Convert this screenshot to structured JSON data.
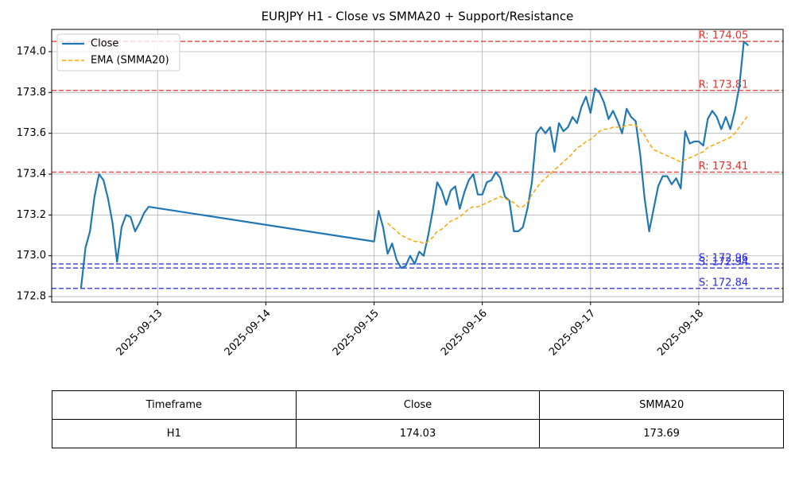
{
  "chart_data": {
    "type": "line",
    "title": "EURJPY H1 - Close vs SMMA20 + Support/Resistance",
    "x": [
      "2025-09-12T07:00",
      "2025-09-12T08:00",
      "2025-09-12T09:00",
      "2025-09-12T10:00",
      "2025-09-12T11:00",
      "2025-09-12T12:00",
      "2025-09-12T13:00",
      "2025-09-12T14:00",
      "2025-09-12T15:00",
      "2025-09-12T16:00",
      "2025-09-12T17:00",
      "2025-09-12T18:00",
      "2025-09-12T19:00",
      "2025-09-12T20:00",
      "2025-09-12T21:00",
      "2025-09-12T22:00",
      "2025-09-15T00:00",
      "2025-09-15T01:00",
      "2025-09-15T02:00",
      "2025-09-15T03:00",
      "2025-09-15T04:00",
      "2025-09-15T05:00",
      "2025-09-15T06:00",
      "2025-09-15T07:00",
      "2025-09-15T08:00",
      "2025-09-15T09:00",
      "2025-09-15T10:00",
      "2025-09-15T11:00",
      "2025-09-15T12:00",
      "2025-09-15T13:00",
      "2025-09-15T14:00",
      "2025-09-15T15:00",
      "2025-09-15T16:00",
      "2025-09-15T17:00",
      "2025-09-15T18:00",
      "2025-09-15T19:00",
      "2025-09-15T20:00",
      "2025-09-15T21:00",
      "2025-09-15T22:00",
      "2025-09-15T23:00",
      "2025-09-16T00:00",
      "2025-09-16T01:00",
      "2025-09-16T02:00",
      "2025-09-16T03:00",
      "2025-09-16T04:00",
      "2025-09-16T05:00",
      "2025-09-16T06:00",
      "2025-09-16T07:00",
      "2025-09-16T08:00",
      "2025-09-16T09:00",
      "2025-09-16T10:00",
      "2025-09-16T11:00",
      "2025-09-16T12:00",
      "2025-09-16T13:00",
      "2025-09-16T14:00",
      "2025-09-16T15:00",
      "2025-09-16T16:00",
      "2025-09-16T17:00",
      "2025-09-16T18:00",
      "2025-09-16T19:00",
      "2025-09-16T20:00",
      "2025-09-16T21:00",
      "2025-09-16T22:00",
      "2025-09-16T23:00",
      "2025-09-17T00:00",
      "2025-09-17T01:00",
      "2025-09-17T02:00",
      "2025-09-17T03:00",
      "2025-09-17T04:00",
      "2025-09-17T05:00",
      "2025-09-17T06:00",
      "2025-09-17T07:00",
      "2025-09-17T08:00",
      "2025-09-17T09:00",
      "2025-09-17T10:00",
      "2025-09-17T11:00",
      "2025-09-17T12:00",
      "2025-09-17T13:00",
      "2025-09-17T14:00",
      "2025-09-17T15:00",
      "2025-09-17T16:00",
      "2025-09-17T17:00",
      "2025-09-17T18:00",
      "2025-09-17T19:00",
      "2025-09-17T20:00",
      "2025-09-17T21:00",
      "2025-09-17T22:00",
      "2025-09-17T23:00",
      "2025-09-18T00:00",
      "2025-09-18T01:00",
      "2025-09-18T02:00",
      "2025-09-18T03:00",
      "2025-09-18T04:00",
      "2025-09-18T05:00",
      "2025-09-18T06:00",
      "2025-09-18T07:00",
      "2025-09-18T08:00",
      "2025-09-18T09:00",
      "2025-09-18T10:00",
      "2025-09-18T11:00"
    ],
    "series": [
      {
        "name": "Close",
        "color": "#1f77b4",
        "dash": false,
        "values": [
          172.84,
          173.04,
          173.12,
          173.29,
          173.4,
          173.37,
          173.28,
          173.16,
          172.97,
          173.14,
          173.2,
          173.19,
          173.12,
          173.16,
          173.21,
          173.24,
          173.07,
          173.22,
          173.14,
          173.01,
          173.06,
          172.98,
          172.94,
          172.95,
          173.0,
          172.96,
          173.02,
          173.0,
          173.1,
          173.22,
          173.36,
          173.32,
          173.25,
          173.32,
          173.34,
          173.23,
          173.31,
          173.37,
          173.4,
          173.3,
          173.3,
          173.36,
          173.37,
          173.41,
          173.38,
          173.29,
          173.27,
          173.12,
          173.12,
          173.14,
          173.23,
          173.36,
          173.6,
          173.63,
          173.6,
          173.63,
          173.51,
          173.65,
          173.61,
          173.63,
          173.68,
          173.65,
          173.73,
          173.78,
          173.7,
          173.82,
          173.8,
          173.75,
          173.67,
          173.71,
          173.66,
          173.6,
          173.72,
          173.68,
          173.66,
          173.5,
          173.28,
          173.12,
          173.23,
          173.34,
          173.39,
          173.39,
          173.35,
          173.38,
          173.33,
          173.61,
          173.55,
          173.56,
          173.56,
          173.54,
          173.67,
          173.71,
          173.68,
          173.62,
          173.68,
          173.62,
          173.71,
          173.83,
          174.05,
          174.03
        ]
      },
      {
        "name": "EMA (SMMA20)",
        "color": "#ffa500",
        "dash": true,
        "values": [
          null,
          null,
          null,
          null,
          null,
          null,
          null,
          null,
          null,
          null,
          null,
          null,
          null,
          null,
          null,
          null,
          null,
          null,
          null,
          173.16,
          173.14,
          173.12,
          173.1,
          173.09,
          173.08,
          173.07,
          173.07,
          173.06,
          173.07,
          173.09,
          173.12,
          173.13,
          173.15,
          173.17,
          173.18,
          173.19,
          173.21,
          173.23,
          173.24,
          173.24,
          173.25,
          173.26,
          173.27,
          173.28,
          173.29,
          173.28,
          173.27,
          173.26,
          173.24,
          173.24,
          173.26,
          173.3,
          173.33,
          173.36,
          173.38,
          173.4,
          173.42,
          173.44,
          173.46,
          173.48,
          173.5,
          173.53,
          173.54,
          173.56,
          173.57,
          173.59,
          173.61,
          173.62,
          173.62,
          173.63,
          173.63,
          173.63,
          173.64,
          173.64,
          173.64,
          173.62,
          173.59,
          173.55,
          173.52,
          173.51,
          173.5,
          173.49,
          173.48,
          173.47,
          173.46,
          173.47,
          173.48,
          173.49,
          173.5,
          173.51,
          173.53,
          173.54,
          173.55,
          173.56,
          173.57,
          173.58,
          173.6,
          173.63,
          173.66,
          173.69
        ]
      }
    ],
    "hlines": [
      {
        "value": 174.05,
        "label": "R: 174.05",
        "color": "#e8302c"
      },
      {
        "value": 173.81,
        "label": "R: 173.81",
        "color": "#e8302c"
      },
      {
        "value": 173.41,
        "label": "R: 173.41",
        "color": "#e8302c"
      },
      {
        "value": 172.96,
        "label": "S: 172.96",
        "color": "#2b2be8"
      },
      {
        "value": 172.94,
        "label": "S: 172.94",
        "color": "#2b2be8"
      },
      {
        "value": 172.84,
        "label": "S: 172.84",
        "color": "#2b2be8"
      }
    ],
    "xlim": [
      "2025-09-12T00:30",
      "2025-09-18T18:42"
    ],
    "xticks": [
      "2025-09-13",
      "2025-09-14",
      "2025-09-15",
      "2025-09-16",
      "2025-09-17",
      "2025-09-18"
    ],
    "ylim": [
      172.773,
      174.109
    ],
    "yticks": [
      172.8,
      {
        "value": 173,
        "label": "173.0"
      },
      173.2,
      173.4,
      173.6,
      173.8,
      {
        "value": 174,
        "label": "174.0"
      }
    ],
    "grid": true,
    "legend": "upper left"
  },
  "table": {
    "header": [
      "Timeframe",
      "Close",
      "SMMA20"
    ],
    "rows": [
      [
        "H1",
        "174.03",
        "173.69"
      ]
    ]
  }
}
